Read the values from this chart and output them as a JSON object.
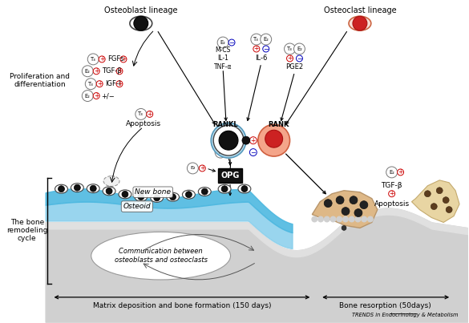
{
  "bg_color": "#ffffff",
  "osteoblast_lineage_label": "Osteoblast lineage",
  "osteoclast_lineage_label": "Osteoclast lineage",
  "bone_remodeling_label": "The bone\nremodeling\ncycle",
  "bottom_label1": "Matrix deposition and bone formation (150 days)",
  "bottom_label2": "Bone resorption (50days)",
  "journal_label": "TRENDS in Endocrinology & Metabolism",
  "new_bone_label": "New bone",
  "osteoid_label": "Osteoid",
  "comm_label": "Communication between\nosteoblasts and osteoclasts",
  "apoptosis_label1": "Apoptosis",
  "apoptosis_label2": "Apoptosis",
  "proliferation_label": "Proliferation and\ndifferentiation",
  "rankl_label": "RANKL",
  "rank_label": "RANK",
  "opg_label": "OPG",
  "mcs_label": "M-CS\nIL-1\nTNF-α",
  "il6_label": "IL-6",
  "pge2_label": "PGE2",
  "fgf_label": "FGFs",
  "tgfb_label": "TGF-β",
  "igf_label": "IGF-I",
  "tgfb2_label": "TGF-β"
}
